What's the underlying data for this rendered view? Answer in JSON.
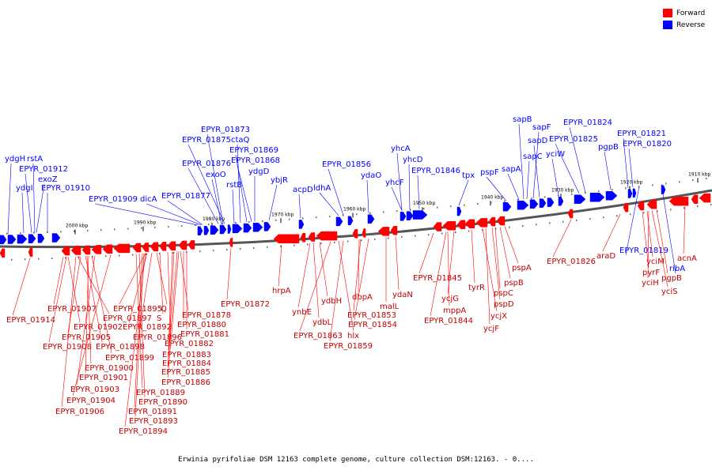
{
  "legend": {
    "forward_label": "Forward",
    "reverse_label": "Reverse",
    "forward_color": "#ff0000",
    "reverse_color": "#0000ff"
  },
  "caption": "Erwinia pyrifoliae DSM 12163 complete genome, culture collection DSM:12163. - 0....",
  "ticks": [
    "2000 kbp",
    "1990 kbp",
    "1980 kbp",
    "1970 kbp",
    "1960 kbp",
    "1950 kbp",
    "1940 kbp",
    "1930 kbp",
    "1920 kbp",
    "1910 kbp"
  ],
  "reverse_genes": [
    "ydgH",
    "rstA",
    "EPYR_01912",
    "exoZ",
    "ydgI",
    "EPYR_01910",
    "EPYR_01909",
    "dicA",
    "EPYR_01877",
    "EPYR_01873",
    "EPYR_01875",
    "ctaQ",
    "EPYR_01869",
    "EPYR_01876",
    "EPYR_01868",
    "exoO",
    "ydgD",
    "rstB",
    "ybjR",
    "acpD",
    "ldhA",
    "EPYR_01856",
    "ydaO",
    "yhcA",
    "yhcD",
    "yhcF",
    "EPYR_01846",
    "tpx",
    "pspF",
    "sapB",
    "sapF",
    "sapD",
    "sapC",
    "sapA",
    "yciW",
    "EPYR_01824",
    "EPYR_01825",
    "EPYR_01821",
    "pgpB",
    "EPYR_01820",
    "EPYR_01819",
    "ribA"
  ],
  "forward_genes": [
    "EPYR_01914",
    "EPYR_01907",
    "EPYR_01895",
    "Q",
    "EPYR_01878",
    "EPYR_01897",
    "S",
    "EPYR_01880",
    "EPYR_01902",
    "EPYR_01892",
    "EPYR_01881",
    "EPYR_01905",
    "EPYR_01896",
    "EPYR_01882",
    "EPYR_01908",
    "EPYR_01898",
    "EPYR_01883",
    "EPYR_01899",
    "EPYR_01884",
    "EPYR_01900",
    "EPYR_01885",
    "EPYR_01901",
    "EPYR_01886",
    "EPYR_01903",
    "EPYR_01889",
    "EPYR_01904",
    "EPYR_01890",
    "EPYR_01906",
    "EPYR_01891",
    "EPYR_01893",
    "EPYR_01894",
    "EPYR_01872",
    "hrpA",
    "ynbE",
    "ydbH",
    "ydbL",
    "EPYR_01863",
    "hlx",
    "dbpA",
    "EPYR_01853",
    "EPYR_01854",
    "EPYR_01859",
    "malL",
    "ydaN",
    "EPYR_01845",
    "mppA",
    "EPYR_01844",
    "ycjG",
    "tyrR",
    "ycjX",
    "ycjF",
    "pspB",
    "pspC",
    "pspD",
    "pspA",
    "EPYR_01826",
    "araD",
    "pyrF",
    "yciM",
    "yciH",
    "pgpB",
    "yciS",
    "acnA"
  ]
}
